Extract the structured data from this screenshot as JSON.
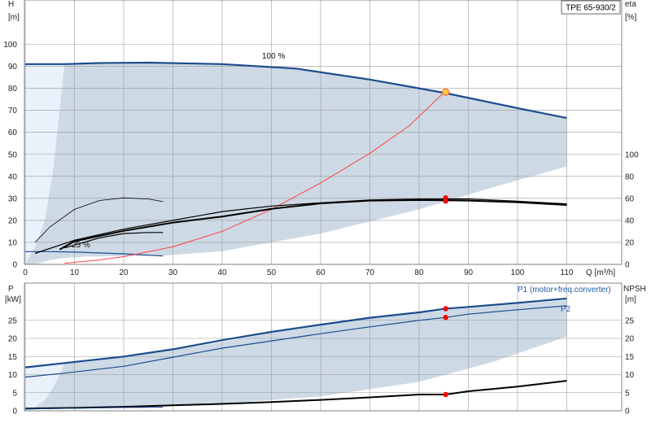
{
  "chart_data": [
    {
      "type": "line",
      "panel": "head",
      "title": "TPE 65-930/2",
      "xlabel": "Q [m³/h]",
      "ylabel": "H",
      "yunit": "[m]",
      "y2label": "eta",
      "y2unit": "[%]",
      "xlim": [
        0,
        110
      ],
      "ylim": [
        0,
        110
      ],
      "y2lim": [
        0,
        200
      ],
      "grid": true,
      "xticks": [
        0,
        10,
        20,
        30,
        40,
        50,
        60,
        70,
        80,
        90,
        100,
        110
      ],
      "yticks": [
        0,
        10,
        20,
        30,
        40,
        50,
        60,
        70,
        80,
        90,
        100
      ],
      "y2ticks": [
        0,
        20,
        40,
        60,
        80,
        100
      ],
      "annotations": [
        "100 %",
        "25 %"
      ],
      "colors": {
        "area": "#cdd9e5",
        "area_light": "#e9f1fb",
        "curve": "#1b4c8c",
        "system": "#ff4444",
        "eta": "#000000",
        "duty": "#ff0000",
        "duty_fill": "#ffcc33"
      },
      "operating_region": {
        "upper": {
          "x": [
            0,
            8,
            15,
            25,
            40,
            55,
            70,
            85,
            100,
            110
          ],
          "y": [
            91,
            91,
            91.5,
            91.7,
            91,
            89,
            84,
            78,
            71,
            66.5
          ]
        },
        "lower": {
          "x": [
            0,
            2,
            5,
            8,
            12,
            20,
            28,
            40,
            60,
            80,
            95,
            110
          ],
          "y": [
            0,
            0,
            2,
            3,
            3.5,
            3.8,
            4,
            6,
            14,
            25,
            35,
            44.5
          ]
        },
        "light_region_boundary": {
          "x": [
            8,
            7,
            5.5,
            4,
            2,
            0
          ],
          "y": [
            91,
            70,
            40,
            20,
            8,
            0
          ]
        }
      },
      "series": [
        {
          "name": "100 %",
          "role": "max-speed H curve",
          "x": [
            0,
            8,
            15,
            25,
            40,
            55,
            70,
            85,
            100,
            110
          ],
          "y": [
            91,
            91,
            91.5,
            91.7,
            91,
            89,
            84,
            78,
            71,
            66.5
          ]
        },
        {
          "name": "25 %",
          "role": "min-speed H curve",
          "x": [
            0,
            5,
            10,
            15,
            20,
            28
          ],
          "y": [
            5.8,
            5.8,
            5.6,
            5.2,
            4.8,
            3.8
          ]
        },
        {
          "role": "system curve",
          "x": [
            8,
            15,
            20,
            30,
            40,
            50,
            60,
            70,
            78,
            85
          ],
          "y": [
            0.5,
            2,
            3.5,
            8,
            15,
            25,
            37,
            50.5,
            63,
            78
          ]
        },
        {
          "role": "eta max speed",
          "axis": "y2",
          "x": [
            2,
            10,
            20,
            30,
            40,
            50,
            60,
            70,
            80,
            90,
            100,
            110
          ],
          "y": [
            10,
            22,
            32,
            40,
            48,
            53,
            56,
            58.5,
            59.5,
            59.5,
            57.5,
            55
          ]
        },
        {
          "role": "eta duty",
          "axis": "y2",
          "x": [
            7,
            10,
            20,
            30,
            40,
            50,
            60,
            70,
            80,
            90,
            100,
            110
          ],
          "y": [
            13.5,
            21,
            30.5,
            38,
            43.5,
            50.5,
            55.5,
            58,
            58.5,
            58,
            56.5,
            54
          ]
        },
        {
          "role": "eta partial speed A",
          "axis": "y2",
          "x": [
            2,
            5,
            10,
            15,
            20,
            25,
            28
          ],
          "y": [
            20,
            34,
            50,
            58,
            60.5,
            59.5,
            57
          ]
        },
        {
          "role": "eta partial speed B",
          "axis": "y2",
          "x": [
            8,
            15,
            20,
            25,
            28
          ],
          "y": [
            15,
            24,
            28,
            29,
            29
          ]
        }
      ],
      "duty_points": [
        {
          "x": 85.4,
          "y": 78.3,
          "axis": "y",
          "style": "duty"
        },
        {
          "x": 85.4,
          "y": 60.5,
          "axis": "y2",
          "style": "marker"
        },
        {
          "x": 85.4,
          "y": 57.5,
          "axis": "y2",
          "style": "marker"
        }
      ]
    },
    {
      "type": "line",
      "panel": "power",
      "ylabel": "P",
      "yunit": "[kW]",
      "y2label": "NPSH",
      "y2unit": "[m]",
      "xlim": [
        0,
        110
      ],
      "ylim": [
        0,
        32
      ],
      "y2lim": [
        0,
        32
      ],
      "grid": true,
      "yticks": [
        0,
        5,
        10,
        15,
        20,
        25
      ],
      "y2ticks": [
        0,
        5,
        10,
        15,
        20,
        25
      ],
      "operating_region": {
        "upper": {
          "x": [
            0,
            8,
            20,
            30,
            40,
            50,
            60,
            70,
            80,
            90,
            100,
            110
          ],
          "y": [
            11.8,
            13,
            15,
            16.8,
            19,
            21.5,
            23.5,
            25.5,
            27,
            28.5,
            29.5,
            30.5
          ]
        },
        "lower": {
          "x": [
            0,
            8,
            20,
            40,
            60,
            80,
            95,
            110
          ],
          "y": [
            0.2,
            0.8,
            1,
            2,
            4,
            8,
            13.5,
            20.5
          ]
        },
        "light_region_boundary": {
          "x": [
            8,
            7,
            5.5,
            4,
            2,
            0
          ],
          "y": [
            13,
            10,
            6,
            3,
            1,
            0.2
          ]
        }
      },
      "series": [
        {
          "name": "P1 (motor+freq.converter)",
          "x": [
            0,
            8,
            20,
            30,
            40,
            50,
            60,
            70,
            80,
            85.4,
            90,
            100,
            110
          ],
          "y": [
            12,
            13.2,
            15,
            17,
            19.5,
            21.8,
            23.8,
            25.7,
            27.2,
            28.2,
            28.7,
            29.8,
            31
          ]
        },
        {
          "name": "P2",
          "x": [
            0,
            8,
            20,
            30,
            40,
            50,
            60,
            70,
            80,
            85.4,
            90,
            100,
            110
          ],
          "y": [
            9.3,
            10.4,
            12.3,
            14.8,
            17.3,
            19.3,
            21.3,
            23.2,
            25,
            25.8,
            26.7,
            27.9,
            29
          ]
        },
        {
          "role": "NPSH",
          "axis": "y2",
          "x": [
            0,
            10,
            20,
            30,
            40,
            50,
            60,
            70,
            80,
            85.4,
            90,
            100,
            110
          ],
          "y": [
            0.6,
            0.8,
            1.1,
            1.5,
            1.9,
            2.4,
            3.0,
            3.7,
            4.5,
            4.5,
            5.4,
            6.7,
            8.3
          ]
        },
        {
          "role": "P partial",
          "x": [
            0,
            10,
            20,
            28
          ],
          "y": [
            0.5,
            0.7,
            0.9,
            1
          ]
        }
      ],
      "duty_points": [
        {
          "x": 85.4,
          "y": 28.2,
          "axis": "y"
        },
        {
          "x": 85.4,
          "y": 25.8,
          "axis": "y"
        },
        {
          "x": 85.4,
          "y": 4.5,
          "axis": "y2"
        }
      ]
    }
  ]
}
